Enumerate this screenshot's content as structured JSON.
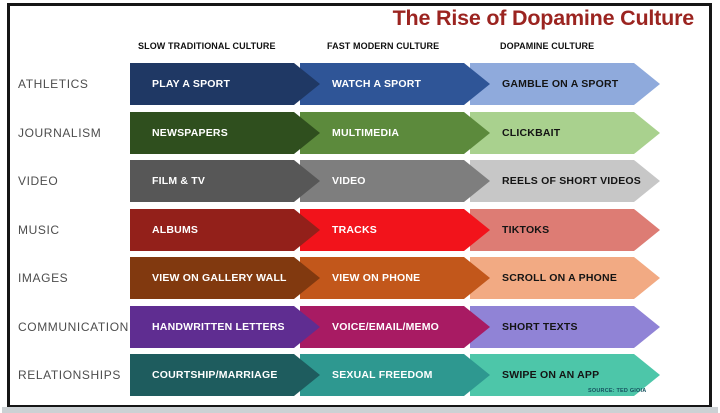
{
  "title": "The Rise of Dopamine Culture",
  "source": "SOURCE: TED GIOIA",
  "columns": [
    "SLOW TRADITIONAL CULTURE",
    "FAST MODERN CULTURE",
    "DOPAMINE CULTURE"
  ],
  "colors": {
    "title": "#9B2420",
    "frame": "#161616",
    "row_label_text": "#4d4d4d",
    "column_header_text": "#101010",
    "column_text_colors": [
      "#FFFFFF",
      "#FFFFFF",
      "#141414"
    ]
  },
  "rows": [
    {
      "label": "ATHLETICS",
      "cells": [
        {
          "text": "PLAY A SPORT",
          "color": "#1F3864"
        },
        {
          "text": "WATCH A SPORT",
          "color": "#2F5597"
        },
        {
          "text": "GAMBLE ON A SPORT",
          "color": "#8FAADC"
        }
      ]
    },
    {
      "label": "JOURNALISM",
      "cells": [
        {
          "text": "NEWSPAPERS",
          "color": "#2F4F1E"
        },
        {
          "text": "MULTIMEDIA",
          "color": "#5C8A3C"
        },
        {
          "text": "CLICKBAIT",
          "color": "#A9D18E"
        }
      ]
    },
    {
      "label": "VIDEO",
      "cells": [
        {
          "text": "FILM &  TV",
          "color": "#575757"
        },
        {
          "text": "VIDEO",
          "color": "#7E7E7E"
        },
        {
          "text": "REELS OF SHORT VIDEOS",
          "color": "#C7C7C7"
        }
      ]
    },
    {
      "label": "MUSIC",
      "cells": [
        {
          "text": "ALBUMS",
          "color": "#93201A"
        },
        {
          "text": "TRACKS",
          "color": "#F2131B"
        },
        {
          "text": "TIKTOKS",
          "color": "#DD7C74"
        }
      ]
    },
    {
      "label": "IMAGES",
      "cells": [
        {
          "text": "VIEW ON GALLERY WALL",
          "color": "#81390F"
        },
        {
          "text": "VIEW ON PHONE",
          "color": "#C2571B"
        },
        {
          "text": "SCROLL ON A PHONE",
          "color": "#F2AA83"
        }
      ]
    },
    {
      "label": "COMMUNICATION",
      "cells": [
        {
          "text": "HANDWRITTEN LETTERS",
          "color": "#5F2D91"
        },
        {
          "text": "VOICE/EMAIL/MEMO",
          "color": "#A81B63"
        },
        {
          "text": "SHORT TEXTS",
          "color": "#9083D6"
        }
      ]
    },
    {
      "label": "RELATIONSHIPS",
      "cells": [
        {
          "text": "COURTSHIP/MARRIAGE",
          "color": "#1E5C5E"
        },
        {
          "text": "SEXUAL FREEDOM",
          "color": "#2E9890"
        },
        {
          "text": "SWIPE ON AN APP",
          "color": "#4DC6A9"
        }
      ]
    }
  ],
  "layout_hints": {
    "type": "table",
    "note": "progression arrows left-to-right per category row"
  }
}
